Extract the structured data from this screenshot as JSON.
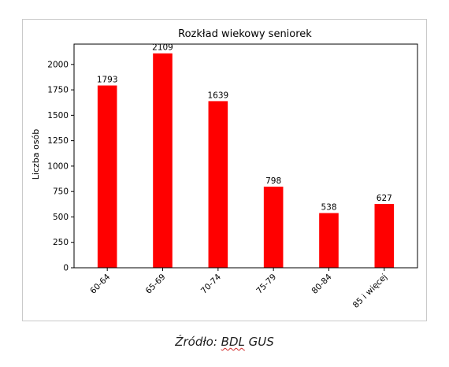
{
  "chart_data": {
    "type": "bar",
    "title": "Rozkład wiekowy seniorek",
    "ylabel": "Liczba osób",
    "xlabel": "",
    "categories": [
      "60-64",
      "65-69",
      "70-74",
      "75-79",
      "80-84",
      "85 i więcej"
    ],
    "values": [
      1793,
      2109,
      1639,
      798,
      538,
      627
    ],
    "ylim": [
      0,
      2200
    ],
    "yticks": [
      0,
      250,
      500,
      750,
      1000,
      1250,
      1500,
      1750,
      2000
    ],
    "bar_color": "#ff0000",
    "grid": false,
    "legend": "none"
  },
  "caption": {
    "prefix": "Źródło: ",
    "source": "BDL",
    "suffix": " GUS"
  }
}
